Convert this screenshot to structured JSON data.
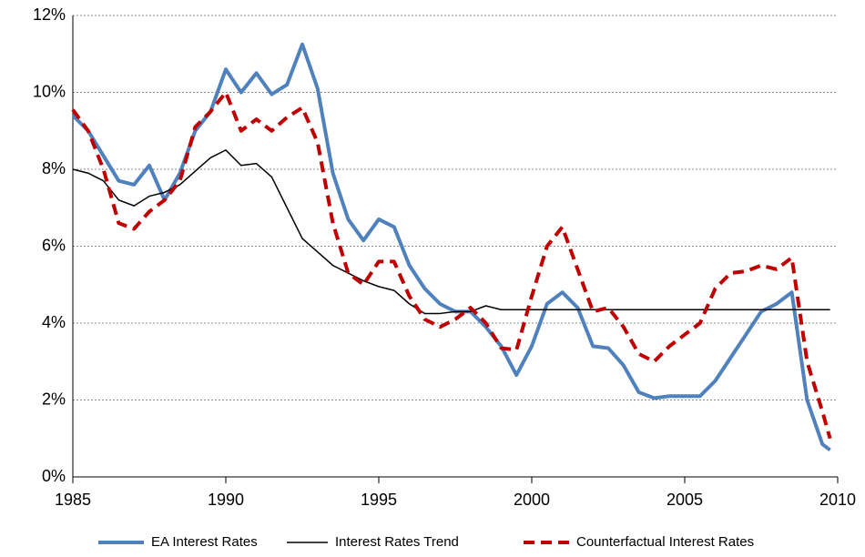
{
  "chart_data": {
    "type": "line",
    "x": [
      1985,
      1985.5,
      1986,
      1986.5,
      1987,
      1987.5,
      1988,
      1988.5,
      1989,
      1989.5,
      1990,
      1990.5,
      1991,
      1991.5,
      1992,
      1992.5,
      1993,
      1993.5,
      1994,
      1994.5,
      1995,
      1995.5,
      1996,
      1996.5,
      1997,
      1997.5,
      1998,
      1998.5,
      1999,
      1999.5,
      2000,
      2000.5,
      2001,
      2001.5,
      2002,
      2002.5,
      2003,
      2003.5,
      2004,
      2004.5,
      2005,
      2005.5,
      2006,
      2006.5,
      2007,
      2007.5,
      2008,
      2008.5,
      2009,
      2009.5,
      2009.75
    ],
    "series": [
      {
        "name": "EA Interest Rates",
        "color": "#4f81bd",
        "width": 4,
        "dash": "none",
        "values": [
          9.4,
          9.0,
          8.35,
          7.7,
          7.6,
          8.1,
          7.2,
          7.9,
          9.0,
          9.5,
          10.6,
          10.0,
          10.5,
          9.95,
          10.2,
          11.25,
          10.1,
          7.9,
          6.7,
          6.15,
          6.7,
          6.5,
          5.5,
          4.9,
          4.5,
          4.3,
          4.3,
          3.9,
          3.4,
          2.65,
          3.4,
          4.5,
          4.8,
          4.4,
          3.4,
          3.35,
          2.9,
          2.2,
          2.05,
          2.1,
          2.1,
          2.1,
          2.5,
          3.1,
          3.7,
          4.3,
          4.5,
          4.8,
          2.0,
          0.85,
          0.7
        ]
      },
      {
        "name": "Interest Rates Trend",
        "color": "#000000",
        "width": 1.5,
        "dash": "none",
        "values": [
          8.0,
          7.9,
          7.7,
          7.2,
          7.05,
          7.3,
          7.4,
          7.6,
          7.95,
          8.3,
          8.5,
          8.1,
          8.15,
          7.8,
          7.0,
          6.2,
          5.85,
          5.5,
          5.3,
          5.1,
          4.95,
          4.85,
          4.5,
          4.25,
          4.25,
          4.3,
          4.3,
          4.45,
          4.35,
          4.35,
          4.35,
          4.35,
          4.35,
          4.35,
          4.35,
          4.35,
          4.35,
          4.35,
          4.35,
          4.35,
          4.35,
          4.35,
          4.35,
          4.35,
          4.35,
          4.35,
          4.35,
          4.35,
          4.35,
          4.35,
          4.35
        ]
      },
      {
        "name": "Counterfactual Interest Rates",
        "color": "#c00000",
        "width": 4,
        "dash": "12 7",
        "values": [
          9.55,
          9.0,
          8.0,
          6.6,
          6.45,
          6.9,
          7.2,
          7.7,
          9.1,
          9.5,
          10.0,
          9.0,
          9.3,
          9.0,
          9.35,
          9.6,
          8.7,
          6.6,
          5.3,
          5.0,
          5.6,
          5.6,
          4.7,
          4.1,
          3.9,
          4.1,
          4.4,
          4.0,
          3.35,
          3.3,
          4.7,
          6.0,
          6.5,
          5.4,
          4.3,
          4.4,
          3.9,
          3.2,
          3.0,
          3.4,
          3.7,
          4.0,
          4.9,
          5.3,
          5.35,
          5.5,
          5.4,
          5.7,
          3.0,
          1.7,
          1.0
        ]
      }
    ],
    "xlim": [
      1985,
      2010
    ],
    "xticks": [
      1985,
      1990,
      1995,
      2000,
      2005,
      2010
    ],
    "ylim": [
      0,
      12
    ],
    "yticks": [
      {
        "value": 0,
        "label": "0%"
      },
      {
        "value": 2,
        "label": "2%"
      },
      {
        "value": 4,
        "label": "4%"
      },
      {
        "value": 6,
        "label": "6%"
      },
      {
        "value": 8,
        "label": "8%"
      },
      {
        "value": 10,
        "label": "10%"
      },
      {
        "value": 12,
        "label": "12%"
      }
    ],
    "grid": true,
    "legend": "bottom"
  }
}
